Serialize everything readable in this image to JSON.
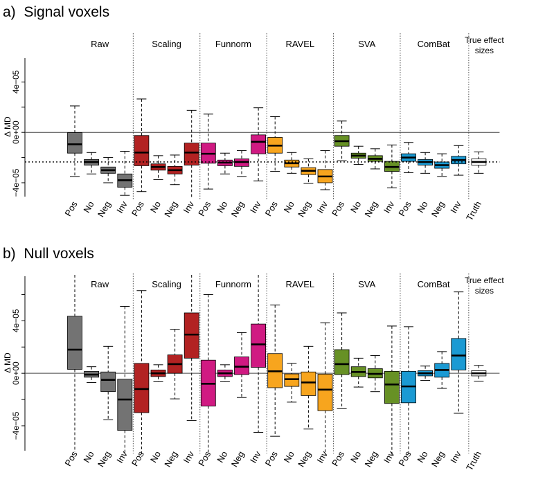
{
  "colors": {
    "Raw": "#737373",
    "Scaling": "#B22222",
    "Funnorm": "#D01A82",
    "RAVEL": "#F7A51E",
    "SVA": "#679125",
    "ComBat": "#1B9AD3",
    "Truth": "#FFFFFF"
  },
  "subgroups": [
    "Pos",
    "No",
    "Neg",
    "Inv"
  ],
  "chart_data": [
    {
      "type": "boxplot",
      "panel_label": "a)",
      "title": "Signal voxels",
      "ylabel": "Δ MD",
      "yticks": [
        "4e−05",
        "0e+00",
        "−4e−05"
      ],
      "ytick_values": [
        4e-05,
        0,
        -4e-05
      ],
      "ylim": [
        -5.1e-05,
        6e-05
      ],
      "hline_solid": 0,
      "hline_dotted": -2.35e-05,
      "groups": [
        "Raw",
        "Scaling",
        "Funnorm",
        "RAVEL",
        "SVA",
        "ComBat"
      ],
      "truth_label": [
        "True effect",
        "sizes"
      ],
      "boxes": [
        {
          "group": "Raw",
          "label": "Pos",
          "whislo": -3.5e-05,
          "q1": -1.65e-05,
          "med": -9.5e-06,
          "q3": -2e-07,
          "whishi": 2.1e-05
        },
        {
          "group": "Raw",
          "label": "No",
          "whislo": -3.3e-05,
          "q1": -2.6e-05,
          "med": -2.35e-05,
          "q3": -2.15e-05,
          "whishi": -1.6e-05
        },
        {
          "group": "Raw",
          "label": "Neg",
          "whislo": -4e-05,
          "q1": -3.25e-05,
          "med": -3e-05,
          "q3": -2.75e-05,
          "whishi": -2e-05
        },
        {
          "group": "Raw",
          "label": "Inv",
          "whislo": -5e-05,
          "q1": -4.35e-05,
          "med": -3.8e-05,
          "q3": -3.3e-05,
          "whishi": -1.5e-05
        },
        {
          "group": "Scaling",
          "label": "Pos",
          "whislo": -4.7e-05,
          "q1": -2.65e-05,
          "med": -1.6e-05,
          "q3": -2.5e-06,
          "whishi": 2.65e-05
        },
        {
          "group": "Scaling",
          "label": "No",
          "whislo": -3.75e-05,
          "q1": -3e-05,
          "med": -2.75e-05,
          "q3": -2.5e-05,
          "whishi": -1.85e-05
        },
        {
          "group": "Scaling",
          "label": "Neg",
          "whislo": -4.15e-05,
          "q1": -3.3e-05,
          "med": -3e-05,
          "q3": -2.7e-05,
          "whishi": -1.8e-05
        },
        {
          "group": "Scaling",
          "label": "Inv",
          "whislo": -5.2e-05,
          "q1": -2.6e-05,
          "med": -1.6e-05,
          "q3": -8.5e-06,
          "whishi": 1.75e-05
        },
        {
          "group": "Funnorm",
          "label": "Pos",
          "whislo": -4.5e-05,
          "q1": -2.45e-05,
          "med": -1.7e-05,
          "q3": -8.5e-06,
          "whishi": 1.45e-05
        },
        {
          "group": "Funnorm",
          "label": "No",
          "whislo": -3.3e-05,
          "q1": -2.65e-05,
          "med": -2.4e-05,
          "q3": -2.2e-05,
          "whishi": -1.65e-05
        },
        {
          "group": "Funnorm",
          "label": "Neg",
          "whislo": -3.5e-05,
          "q1": -2.7e-05,
          "med": -2.35e-05,
          "q3": -2.1e-05,
          "whishi": -1.45e-05
        },
        {
          "group": "Funnorm",
          "label": "Inv",
          "whislo": -3.85e-05,
          "q1": -1.7e-05,
          "med": -7.5e-06,
          "q3": -2e-06,
          "whishi": 1.95e-05
        },
        {
          "group": "RAVEL",
          "label": "Pos",
          "whislo": -3.1e-05,
          "q1": -1.65e-05,
          "med": -1.05e-05,
          "q3": -4e-06,
          "whishi": 1.25e-05
        },
        {
          "group": "RAVEL",
          "label": "No",
          "whislo": -3.25e-05,
          "q1": -2.75e-05,
          "med": -2.45e-05,
          "q3": -2.2e-05,
          "whishi": -1.6e-05
        },
        {
          "group": "RAVEL",
          "label": "Neg",
          "whislo": -4.05e-05,
          "q1": -3.35e-05,
          "med": -3.05e-05,
          "q3": -2.8e-05,
          "whishi": -2.1e-05
        },
        {
          "group": "RAVEL",
          "label": "Inv",
          "whislo": -4.55e-05,
          "q1": -4e-05,
          "med": -3.5e-05,
          "q3": -2.95e-05,
          "whishi": -1.45e-05
        },
        {
          "group": "SVA",
          "label": "Pos",
          "whislo": -2.25e-05,
          "q1": -1.1e-05,
          "med": -7e-06,
          "q3": -2.5e-06,
          "whishi": 9e-06
        },
        {
          "group": "SVA",
          "label": "No",
          "whislo": -2.55e-05,
          "q1": -2.05e-05,
          "med": -1.85e-05,
          "q3": -1.65e-05,
          "whishi": -1.1e-05
        },
        {
          "group": "SVA",
          "label": "Neg",
          "whislo": -2.9e-05,
          "q1": -2.3e-05,
          "med": -2.1e-05,
          "q3": -1.85e-05,
          "whishi": -1.3e-05
        },
        {
          "group": "SVA",
          "label": "Inv",
          "whislo": -4.4e-05,
          "q1": -3.1e-05,
          "med": -2.75e-05,
          "q3": -2.3e-05,
          "whishi": -1e-05
        },
        {
          "group": "ComBat",
          "label": "Pos",
          "whislo": -3.2e-05,
          "q1": -2.3e-05,
          "med": -2e-05,
          "q3": -1.7e-05,
          "whishi": -8e-06
        },
        {
          "group": "ComBat",
          "label": "No",
          "whislo": -3.25e-05,
          "q1": -2.6e-05,
          "med": -2.35e-05,
          "q3": -2.15e-05,
          "whishi": -1.6e-05
        },
        {
          "group": "ComBat",
          "label": "Neg",
          "whislo": -3.5e-05,
          "q1": -2.85e-05,
          "med": -2.6e-05,
          "q3": -2.35e-05,
          "whishi": -1.7e-05
        },
        {
          "group": "ComBat",
          "label": "Inv",
          "whislo": -3.4e-05,
          "q1": -2.5e-05,
          "med": -2.2e-05,
          "q3": -1.9e-05,
          "whishi": -1.05e-05
        },
        {
          "group": "Truth",
          "label": "Truth",
          "whislo": -3.25e-05,
          "q1": -2.6e-05,
          "med": -2.35e-05,
          "q3": -2.1e-05,
          "whishi": -1.55e-05
        }
      ]
    },
    {
      "type": "boxplot",
      "panel_label": "b)",
      "title": "Null voxels",
      "ylabel": "Δ MD",
      "yticks": [
        "4e−05",
        "0e+00",
        "−4e−05"
      ],
      "ytick_values": [
        4e-05,
        0,
        -4e-05
      ],
      "ylim": [
        -5.9e-05,
        7.5e-05
      ],
      "hline_solid": 0,
      "hline_dotted": null,
      "groups": [
        "Raw",
        "Scaling",
        "Funnorm",
        "RAVEL",
        "SVA",
        "ComBat"
      ],
      "truth_label": [
        "True effect",
        "sizes"
      ],
      "boxes": [
        {
          "group": "Raw",
          "label": "Pos",
          "whislo": -6e-05,
          "q1": 3e-06,
          "med": 1.8e-05,
          "q3": 4.35e-05,
          "whishi": 7.5e-05
        },
        {
          "group": "Raw",
          "label": "No",
          "whislo": -7e-06,
          "q1": -3e-06,
          "med": -1e-06,
          "q3": 1.5e-06,
          "whishi": 5e-06
        },
        {
          "group": "Raw",
          "label": "Neg",
          "whislo": -3.55e-05,
          "q1": -1.4e-05,
          "med": -5e-06,
          "q3": 1e-06,
          "whishi": 2.05e-05
        },
        {
          "group": "Raw",
          "label": "Inv",
          "whislo": -6.2e-05,
          "q1": -4.35e-05,
          "med": -2e-05,
          "q3": -4.5e-06,
          "whishi": 5.1e-05
        },
        {
          "group": "Scaling",
          "label": "Pos",
          "whislo": -6.2e-05,
          "q1": -3e-05,
          "med": -1.2e-05,
          "q3": 7.5e-06,
          "whishi": 6.3e-05
        },
        {
          "group": "Scaling",
          "label": "No",
          "whislo": -6.5e-06,
          "q1": -2.5e-06,
          "med": 0,
          "q3": 2.5e-06,
          "whishi": 6.5e-06
        },
        {
          "group": "Scaling",
          "label": "Neg",
          "whislo": -1.95e-05,
          "q1": 0,
          "med": 7e-06,
          "q3": 1.4e-05,
          "whishi": 3.35e-05
        },
        {
          "group": "Scaling",
          "label": "Inv",
          "whislo": -3.6e-05,
          "q1": 1.15e-05,
          "med": 2.95e-05,
          "q3": 4.6e-05,
          "whishi": 7.5e-05
        },
        {
          "group": "Funnorm",
          "label": "Pos",
          "whislo": -6.2e-05,
          "q1": -2.5e-05,
          "med": -8e-06,
          "q3": 1e-05,
          "whishi": 6e-05
        },
        {
          "group": "Funnorm",
          "label": "No",
          "whislo": -6.5e-06,
          "q1": -2.5e-06,
          "med": 0,
          "q3": 2.5e-06,
          "whishi": 6.5e-06
        },
        {
          "group": "Funnorm",
          "label": "Neg",
          "whislo": -1.85e-05,
          "q1": -1e-06,
          "med": 5e-06,
          "q3": 1.25e-05,
          "whishi": 3.1e-05
        },
        {
          "group": "Funnorm",
          "label": "Inv",
          "whislo": -4.5e-05,
          "q1": 4.5e-06,
          "med": 2.2e-05,
          "q3": 3.75e-05,
          "whishi": 7.5e-05
        },
        {
          "group": "RAVEL",
          "label": "Pos",
          "whislo": -4.8e-05,
          "q1": -1.1e-05,
          "med": 1.5e-06,
          "q3": 1.5e-05,
          "whishi": 5.2e-05
        },
        {
          "group": "RAVEL",
          "label": "No",
          "whislo": -2.2e-05,
          "q1": -1e-05,
          "med": -4.5e-06,
          "q3": -5e-07,
          "whishi": 7.5e-06
        },
        {
          "group": "RAVEL",
          "label": "Neg",
          "whislo": -4.25e-05,
          "q1": -1.7e-05,
          "med": -7e-06,
          "q3": 1e-06,
          "whishi": 2.05e-05
        },
        {
          "group": "RAVEL",
          "label": "Inv",
          "whislo": -6.2e-05,
          "q1": -2.85e-05,
          "med": -1.25e-05,
          "q3": -7e-07,
          "whishi": 3.85e-05
        },
        {
          "group": "SVA",
          "label": "Pos",
          "whislo": -2.7e-05,
          "q1": -1e-06,
          "med": 7e-06,
          "q3": 1.8e-05,
          "whishi": 4.6e-05
        },
        {
          "group": "SVA",
          "label": "No",
          "whislo": -1.05e-05,
          "q1": -2.5e-06,
          "med": 1e-06,
          "q3": 5e-06,
          "whishi": 1.15e-05
        },
        {
          "group": "SVA",
          "label": "Neg",
          "whislo": -1.4e-05,
          "q1": -3.5e-06,
          "med": -5e-07,
          "q3": 3.5e-06,
          "whishi": 1.35e-05
        },
        {
          "group": "SVA",
          "label": "Inv",
          "whislo": -6.2e-05,
          "q1": -2.3e-05,
          "med": -8.5e-06,
          "q3": 1.5e-06,
          "whishi": 3.6e-05
        },
        {
          "group": "ComBat",
          "label": "Pos",
          "whislo": -6.2e-05,
          "q1": -2.25e-05,
          "med": -1e-05,
          "q3": 1.5e-06,
          "whishi": 3.55e-05
        },
        {
          "group": "ComBat",
          "label": "No",
          "whislo": -5.5e-06,
          "q1": -2e-06,
          "med": 0,
          "q3": 2e-06,
          "whishi": 5.5e-06
        },
        {
          "group": "ComBat",
          "label": "Neg",
          "whislo": -1.15e-05,
          "q1": -3e-06,
          "med": 2.5e-06,
          "q3": 7.5e-06,
          "whishi": 1.65e-05
        },
        {
          "group": "ComBat",
          "label": "Inv",
          "whislo": -3.05e-05,
          "q1": 2.5e-06,
          "med": 1.35e-05,
          "q3": 2.65e-05,
          "whishi": 6.2e-05
        },
        {
          "group": "Truth",
          "label": "Truth",
          "whislo": -6e-06,
          "q1": -2e-06,
          "med": 0,
          "q3": 2e-06,
          "whishi": 6e-06
        }
      ]
    }
  ]
}
